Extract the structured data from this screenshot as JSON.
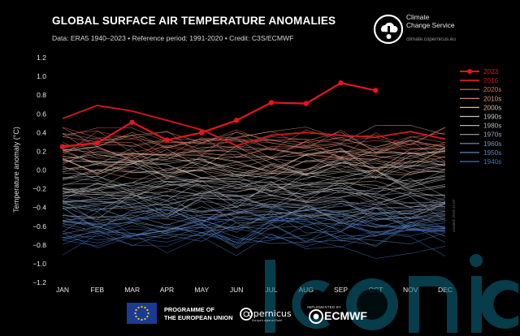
{
  "header": {
    "title": "GLOBAL SURFACE AIR TEMPERATURE ANOMALIES",
    "subtitle": "Data: ERA5 1940–2023 • Reference period: 1991-2020 • Credit: C3S/ECMWF"
  },
  "branding": {
    "c3s_name_line1": "Climate",
    "c3s_name_line2": "Change Service",
    "c3s_url": "climate.copernicus.eu",
    "eu_line1": "PROGRAMME OF",
    "eu_line2": "THE EUROPEAN UNION",
    "copernicus_name": "opernicus",
    "copernicus_tagline": "Europe's eyes on Earth",
    "implemented_by": "IMPLEMENTED BY",
    "ecmwf_name": "ECMWF",
    "date_stamp": "created: 2023-11-07",
    "watermark": "iconic"
  },
  "chart_data": {
    "type": "line",
    "title": "GLOBAL SURFACE AIR TEMPERATURE ANOMALIES",
    "subtitle": "Data: ERA5 1940–2023 • Reference period: 1991-2020 • Credit: C3S/ECMWF",
    "xlabel": "",
    "ylabel": "Temperature anomaly (°C)",
    "categories": [
      "JAN",
      "FEB",
      "MAR",
      "APR",
      "MAY",
      "JUN",
      "JUL",
      "AUG",
      "SEP",
      "OCT",
      "NOV",
      "DEC"
    ],
    "ylim": [
      -1.2,
      1.2
    ],
    "yticks": [
      -1.2,
      -1.0,
      -0.8,
      -0.6,
      -0.4,
      -0.2,
      0.0,
      0.2,
      0.4,
      0.6,
      0.8,
      1.0,
      1.2
    ],
    "ytick_labels": [
      "−1.2",
      "−1.0",
      "−0.8",
      "−0.6",
      "−0.4",
      "−0.2",
      "0.0",
      "0.2",
      "0.4",
      "0.6",
      "0.8",
      "1.0",
      "1.2"
    ],
    "grid": false,
    "legend_position": "top-right",
    "legend": [
      {
        "label": "2023",
        "color": "#e8141c"
      },
      {
        "label": "2016",
        "color": "#c8181e"
      },
      {
        "label": "2020s",
        "color": "#d87060"
      },
      {
        "label": "2010s",
        "color": "#d89a80"
      },
      {
        "label": "2000s",
        "color": "#d8b8a4"
      },
      {
        "label": "1990s",
        "color": "#c8c0bc"
      },
      {
        "label": "1980s",
        "color": "#b4b4b8"
      },
      {
        "label": "1970s",
        "color": "#9aa4b4"
      },
      {
        "label": "1960s",
        "color": "#7d94b4"
      },
      {
        "label": "1950s",
        "color": "#5e84bc"
      },
      {
        "label": "1940s",
        "color": "#3f74c4"
      }
    ],
    "highlight_series": [
      {
        "name": "2023",
        "color": "#e8141c",
        "markers": true,
        "values": [
          0.25,
          0.29,
          0.51,
          0.32,
          0.4,
          0.53,
          0.72,
          0.71,
          0.93,
          0.85
        ]
      },
      {
        "name": "2016",
        "color": "#c8181e",
        "markers": false,
        "values": [
          0.55,
          0.69,
          0.63,
          0.53,
          0.43,
          0.26,
          0.37,
          0.4,
          0.37,
          0.35,
          0.41,
          0.33
        ]
      }
    ],
    "decades": [
      {
        "name": "2020s",
        "color": "#d87060",
        "range": [
          0.18,
          0.42
        ]
      },
      {
        "name": "2010s",
        "color": "#d89a80",
        "range": [
          0.02,
          0.38
        ]
      },
      {
        "name": "2000s",
        "color": "#d8b8a4",
        "range": [
          -0.15,
          0.15
        ]
      },
      {
        "name": "1990s",
        "color": "#c8c0bc",
        "range": [
          -0.28,
          0.05
        ]
      },
      {
        "name": "1980s",
        "color": "#b4b4b8",
        "range": [
          -0.42,
          -0.08
        ]
      },
      {
        "name": "1970s",
        "color": "#9aa4b4",
        "range": [
          -0.55,
          -0.22
        ]
      },
      {
        "name": "1960s",
        "color": "#7d94b4",
        "range": [
          -0.62,
          -0.3
        ]
      },
      {
        "name": "1950s",
        "color": "#5e84bc",
        "range": [
          -0.72,
          -0.38
        ]
      },
      {
        "name": "1940s",
        "color": "#3f74c4",
        "range": [
          -0.9,
          -0.45
        ]
      }
    ]
  }
}
